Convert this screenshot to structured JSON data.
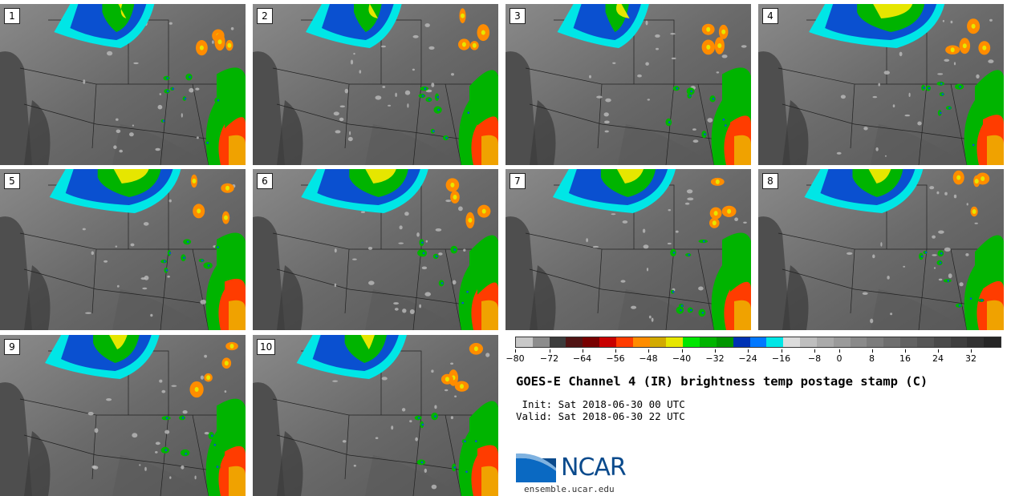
{
  "panels": [
    {
      "label": "1"
    },
    {
      "label": "2"
    },
    {
      "label": "3"
    },
    {
      "label": "4"
    },
    {
      "label": "5"
    },
    {
      "label": "6"
    },
    {
      "label": "7"
    },
    {
      "label": "8"
    },
    {
      "label": "9"
    },
    {
      "label": "10"
    }
  ],
  "colorbar": {
    "colors": [
      "#c8c8c8",
      "#8c8c8c",
      "#3c3c3c",
      "#501414",
      "#780000",
      "#c80000",
      "#ff3c00",
      "#ff8c00",
      "#d2aa00",
      "#e6e600",
      "#00e600",
      "#00b400",
      "#009600",
      "#0032b4",
      "#0078ff",
      "#00e6e6",
      "#dcdcdc",
      "#bebebe",
      "#aaaaaa",
      "#9a9a9a",
      "#8a8a8a",
      "#7c7c7c",
      "#6e6e6e",
      "#626262",
      "#565656",
      "#4a4a4a",
      "#3e3e3e",
      "#323232",
      "#262626"
    ],
    "ticks": [
      "−80",
      "−72",
      "−64",
      "−56",
      "−48",
      "−40",
      "−32",
      "−24",
      "−16",
      "−8",
      "−8",
      "0",
      "8",
      "16",
      "24",
      "32"
    ]
  },
  "title": "GOES-E Channel 4 (IR) brightness temp postage stamp (C)",
  "init": " Init: Sat 2018-06-30 00 UTC",
  "valid": "Valid: Sat 2018-06-30 22 UTC",
  "logo_text": "NCAR",
  "website": "ensemble.ucar.edu"
}
